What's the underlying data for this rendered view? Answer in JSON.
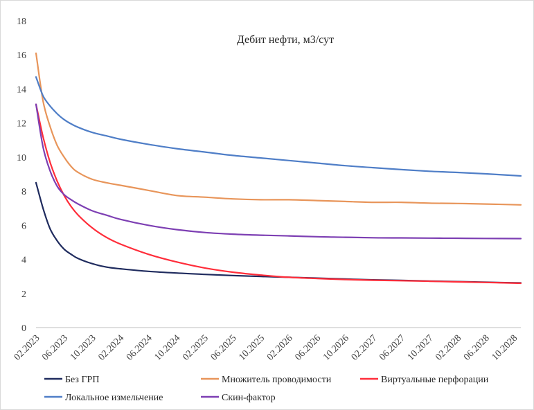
{
  "chart_data": {
    "type": "line",
    "title": "Дебит нефти, м3/сут",
    "xlabel": "",
    "ylabel": "",
    "ylim": [
      0,
      18
    ],
    "yticks": [
      "0",
      "2",
      "4",
      "6",
      "8",
      "10",
      "12",
      "14",
      "16",
      "18"
    ],
    "xlim": [
      0,
      69
    ],
    "x_tick_labels": [
      "02.2023",
      "06.2023",
      "10.2023",
      "02.2024",
      "06.2024",
      "10.2024",
      "02.2025",
      "06.2025",
      "10.2025",
      "02.2026",
      "06.2026",
      "10.2026",
      "02.2027",
      "06.2027",
      "10.2027",
      "02.2028",
      "06.2028",
      "10.2028"
    ],
    "x_tick_positions": [
      0,
      4,
      8,
      12,
      16,
      20,
      24,
      28,
      32,
      36,
      40,
      44,
      48,
      52,
      56,
      60,
      64,
      68
    ],
    "grid": false,
    "legend_position": "bottom",
    "series": [
      {
        "name": "Без ГРП",
        "color": "#1f2b5e",
        "x": [
          0,
          1,
          2,
          3,
          4,
          5,
          6,
          8,
          10,
          12,
          16,
          20,
          24,
          28,
          32,
          36,
          40,
          44,
          48,
          52,
          56,
          60,
          64,
          69
        ],
        "y": [
          8.5,
          7.0,
          5.8,
          5.1,
          4.6,
          4.3,
          4.05,
          3.75,
          3.55,
          3.45,
          3.3,
          3.2,
          3.12,
          3.05,
          3.0,
          2.95,
          2.9,
          2.85,
          2.8,
          2.77,
          2.73,
          2.7,
          2.66,
          2.62
        ]
      },
      {
        "name": "Множитель проводимости",
        "color": "#e8955a",
        "x": [
          0,
          1,
          2,
          3,
          4,
          5,
          6,
          8,
          10,
          12,
          16,
          20,
          24,
          28,
          32,
          36,
          40,
          44,
          48,
          52,
          56,
          60,
          64,
          69
        ],
        "y": [
          16.1,
          13.3,
          11.8,
          10.7,
          10.0,
          9.45,
          9.1,
          8.7,
          8.5,
          8.35,
          8.05,
          7.75,
          7.65,
          7.55,
          7.5,
          7.5,
          7.45,
          7.4,
          7.35,
          7.35,
          7.3,
          7.28,
          7.25,
          7.2
        ]
      },
      {
        "name": "Виртуальные перфорации",
        "color": "#ff2d3a",
        "x": [
          0,
          1,
          2,
          3,
          4,
          5,
          6,
          8,
          10,
          12,
          16,
          20,
          24,
          28,
          32,
          36,
          40,
          44,
          48,
          52,
          56,
          60,
          64,
          69
        ],
        "y": [
          13.1,
          11.2,
          9.7,
          8.6,
          7.75,
          7.1,
          6.6,
          5.85,
          5.3,
          4.9,
          4.3,
          3.85,
          3.5,
          3.25,
          3.08,
          2.95,
          2.88,
          2.82,
          2.78,
          2.75,
          2.72,
          2.68,
          2.65,
          2.6
        ]
      },
      {
        "name": "Локальное измельчение",
        "color": "#4f7ec7",
        "x": [
          0,
          1,
          2,
          3,
          4,
          5,
          6,
          8,
          10,
          12,
          16,
          20,
          24,
          28,
          32,
          36,
          40,
          44,
          48,
          52,
          56,
          60,
          64,
          69
        ],
        "y": [
          14.7,
          13.6,
          13.0,
          12.55,
          12.2,
          11.95,
          11.75,
          11.45,
          11.25,
          11.05,
          10.75,
          10.5,
          10.3,
          10.1,
          9.95,
          9.8,
          9.65,
          9.5,
          9.38,
          9.27,
          9.17,
          9.1,
          9.02,
          8.9
        ]
      },
      {
        "name": "Скин-фактор",
        "color": "#7d3fb3",
        "x": [
          0,
          1,
          2,
          3,
          4,
          5,
          6,
          8,
          10,
          12,
          16,
          20,
          24,
          28,
          32,
          36,
          40,
          44,
          48,
          52,
          56,
          60,
          64,
          69
        ],
        "y": [
          13.1,
          10.6,
          9.2,
          8.3,
          7.8,
          7.5,
          7.25,
          6.85,
          6.6,
          6.35,
          6.0,
          5.75,
          5.58,
          5.48,
          5.42,
          5.38,
          5.33,
          5.3,
          5.27,
          5.26,
          5.25,
          5.24,
          5.23,
          5.22
        ]
      }
    ]
  }
}
